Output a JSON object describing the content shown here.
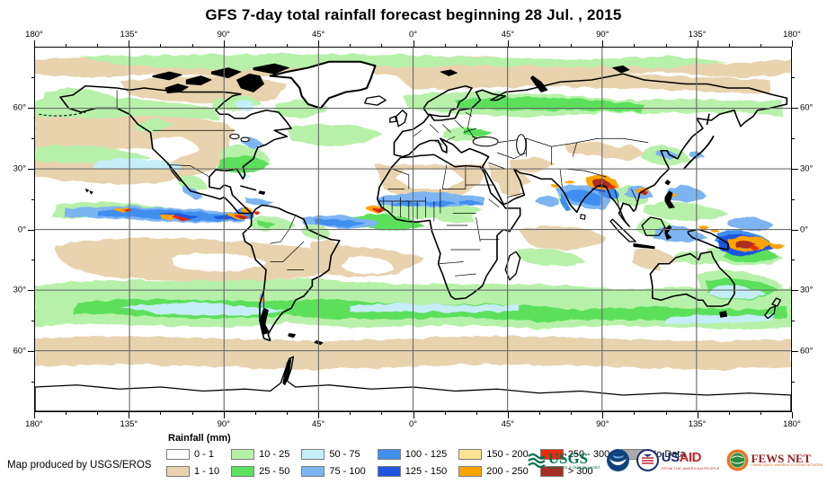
{
  "title": "GFS 7-day total rainfall forecast beginning 28 Jul. , 2015",
  "credit": "Map produced by USGS/EROS",
  "axes": {
    "lon_labels": [
      "180°",
      "135°",
      "90°",
      "45°",
      "0°",
      "45°",
      "90°",
      "135°",
      "180°"
    ],
    "lat_labels": [
      "60°",
      "30°",
      "0°",
      "30°",
      "60°"
    ]
  },
  "legend": {
    "title": "Rainfall (mm)",
    "items": [
      {
        "label": "0 - 1",
        "color": "#ffffff"
      },
      {
        "label": "1 - 10",
        "color": "#e8d3ae"
      },
      {
        "label": "10 - 25",
        "color": "#b7f1a9"
      },
      {
        "label": "25 - 50",
        "color": "#5ce05c"
      },
      {
        "label": "50 - 75",
        "color": "#c5eef8"
      },
      {
        "label": "75 - 100",
        "color": "#7db4f2"
      },
      {
        "label": "100 - 125",
        "color": "#3f8ff0"
      },
      {
        "label": "125 - 150",
        "color": "#1e56e0"
      },
      {
        "label": "150 - 200",
        "color": "#fbe491"
      },
      {
        "label": "200 - 250",
        "color": "#ffa303"
      },
      {
        "label": "250 - 300",
        "color": "#ea2b0c"
      },
      {
        "label": "> 300",
        "color": "#a82e24"
      },
      {
        "label": "No Data",
        "color": "#ababab"
      }
    ]
  },
  "logos": {
    "usgs": {
      "name": "USGS",
      "tagline": "science for a changing world"
    },
    "noaa": {
      "name": "NOAA"
    },
    "usaid": {
      "us": "US",
      "aid": "AID",
      "tagline": "FROM THE AMERICAN PEOPLE"
    },
    "fews": {
      "name": "FEWS NET",
      "tagline": "FAMINE EARLY WARNING SYSTEMS NETWORK"
    }
  }
}
